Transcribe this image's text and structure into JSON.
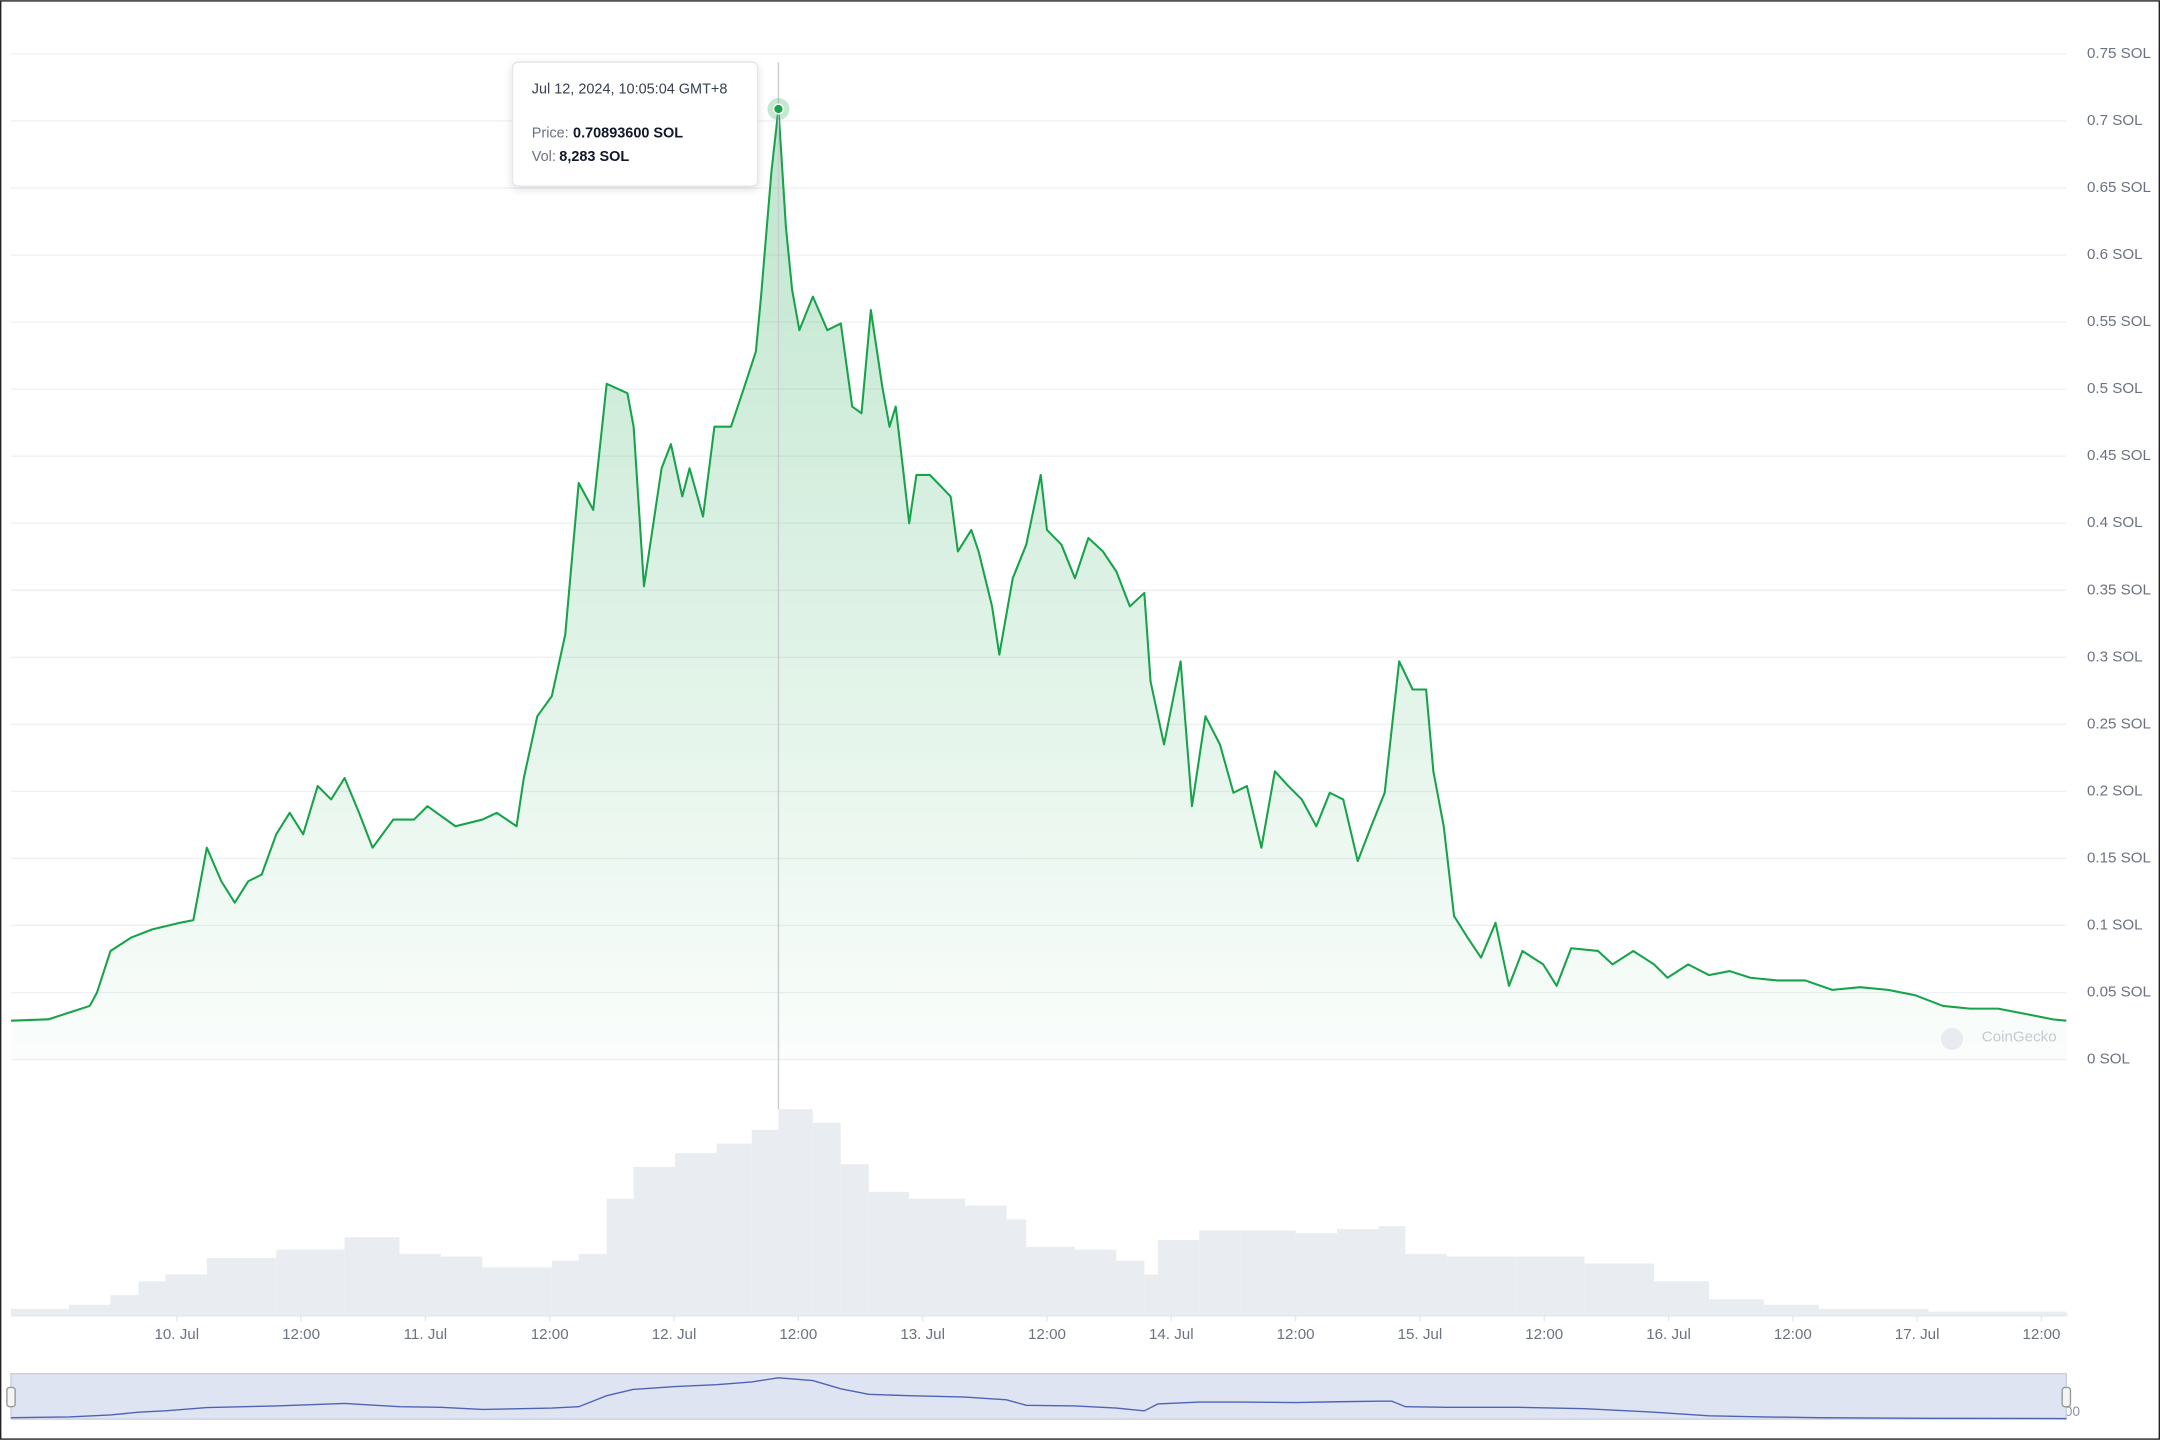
{
  "chart_data": [
    {
      "type": "line",
      "color": "#16a34a",
      "x": [
        -16.0,
        -12.4,
        -10.4,
        -8.4,
        -7.7,
        -6.4,
        -4.4,
        -2.4,
        0.3,
        1.6,
        2.9,
        4.3,
        5.6,
        6.9,
        8.2,
        9.6,
        10.9,
        12.2,
        13.6,
        14.9,
        16.2,
        17.6,
        18.9,
        20.9,
        22.9,
        24.2,
        26.9,
        29.5,
        30.9,
        32.8,
        33.5,
        34.8,
        36.2,
        37.5,
        38.8,
        40.2,
        41.5,
        43.5,
        44.1,
        45.1,
        46.8,
        47.7,
        48.8,
        49.5,
        50.8,
        51.9,
        53.5,
        54.8,
        55.9,
        56.4,
        57.4,
        58.08,
        58.8,
        59.4,
        60.1,
        61.4,
        62.8,
        64.1,
        65.2,
        66.1,
        67.0,
        68.1,
        68.8,
        69.4,
        70.1,
        70.7,
        71.4,
        72.7,
        74.7,
        75.4,
        76.7,
        77.4,
        78.7,
        79.4,
        80.7,
        82.0,
        83.4,
        84.0,
        85.4,
        86.7,
        88.0,
        89.4,
        90.7,
        92.0,
        93.4,
        94.0,
        95.3,
        96.9,
        98.0,
        99.3,
        100.7,
        102.0,
        103.3,
        104.7,
        106.0,
        107.3,
        108.6,
        110.0,
        111.3,
        112.6,
        114.0,
        115.3,
        116.6,
        118.0,
        119.3,
        120.6,
        121.3,
        122.3,
        123.3,
        124.6,
        125.9,
        127.3,
        128.6,
        129.9,
        131.9,
        133.2,
        134.6,
        137.2,
        138.6,
        140.6,
        142.6,
        143.9,
        145.9,
        147.9,
        149.9,
        151.9,
        154.5,
        157.2,
        159.8,
        162.5,
        165.2,
        167.8,
        170.5,
        173.1,
        175.8,
        178.5,
        181.1,
        182.4
      ],
      "values": [
        0.029,
        0.03,
        0.035,
        0.04,
        0.05,
        0.081,
        0.091,
        0.097,
        0.102,
        0.104,
        0.158,
        0.133,
        0.117,
        0.133,
        0.138,
        0.168,
        0.184,
        0.168,
        0.204,
        0.194,
        0.21,
        0.184,
        0.158,
        0.179,
        0.179,
        0.189,
        0.174,
        0.179,
        0.184,
        0.174,
        0.21,
        0.256,
        0.271,
        0.317,
        0.43,
        0.41,
        0.504,
        0.497,
        0.472,
        0.353,
        0.441,
        0.459,
        0.42,
        0.441,
        0.405,
        0.472,
        0.472,
        0.502,
        0.528,
        0.569,
        0.662,
        0.708936,
        0.621,
        0.574,
        0.544,
        0.569,
        0.544,
        0.549,
        0.487,
        0.482,
        0.559,
        0.502,
        0.472,
        0.487,
        0.441,
        0.4,
        0.436,
        0.436,
        0.42,
        0.379,
        0.395,
        0.379,
        0.338,
        0.302,
        0.359,
        0.384,
        0.436,
        0.395,
        0.384,
        0.359,
        0.389,
        0.379,
        0.364,
        0.338,
        0.348,
        0.282,
        0.235,
        0.297,
        0.189,
        0.256,
        0.235,
        0.199,
        0.204,
        0.158,
        0.215,
        0.204,
        0.194,
        0.174,
        0.199,
        0.194,
        0.148,
        0.174,
        0.199,
        0.297,
        0.276,
        0.276,
        0.215,
        0.174,
        0.107,
        0.091,
        0.076,
        0.102,
        0.055,
        0.081,
        0.071,
        0.055,
        0.083,
        0.081,
        0.071,
        0.081,
        0.071,
        0.061,
        0.071,
        0.063,
        0.066,
        0.061,
        0.059,
        0.059,
        0.052,
        0.054,
        0.052,
        0.048,
        0.04,
        0.038,
        0.038,
        0.034,
        0.03,
        0.029
      ],
      "xlim": [
        -16,
        182.4
      ],
      "ylim": [
        0,
        0.75
      ],
      "yticks": [
        {
          "value": 0,
          "label": "0 SOL"
        },
        {
          "value": 0.05,
          "label": "0.05 SOL"
        },
        {
          "value": 0.1,
          "label": "0.1 SOL"
        },
        {
          "value": 0.15,
          "label": "0.15 SOL"
        },
        {
          "value": 0.2,
          "label": "0.2 SOL"
        },
        {
          "value": 0.25,
          "label": "0.25 SOL"
        },
        {
          "value": 0.3,
          "label": "0.3 SOL"
        },
        {
          "value": 0.35,
          "label": "0.35 SOL"
        },
        {
          "value": 0.4,
          "label": "0.4 SOL"
        },
        {
          "value": 0.45,
          "label": "0.45 SOL"
        },
        {
          "value": 0.5,
          "label": "0.5 SOL"
        },
        {
          "value": 0.55,
          "label": "0.55 SOL"
        },
        {
          "value": 0.6,
          "label": "0.6 SOL"
        },
        {
          "value": 0.65,
          "label": "0.65 SOL"
        },
        {
          "value": 0.7,
          "label": "0.7 SOL"
        },
        {
          "value": 0.75,
          "label": "0.75 SOL"
        }
      ],
      "xticks": [
        {
          "value": 0,
          "label": "10. Jul"
        },
        {
          "value": 12,
          "label": "12:00"
        },
        {
          "value": 24,
          "label": "11. Jul"
        },
        {
          "value": 36,
          "label": "12:00"
        },
        {
          "value": 48,
          "label": "12. Jul"
        },
        {
          "value": 60,
          "label": "12:00"
        },
        {
          "value": 72,
          "label": "13. Jul"
        },
        {
          "value": 84,
          "label": "12:00"
        },
        {
          "value": 96,
          "label": "14. Jul"
        },
        {
          "value": 108,
          "label": "12:00"
        },
        {
          "value": 120,
          "label": "15. Jul"
        },
        {
          "value": 132,
          "label": "12:00"
        },
        {
          "value": 144,
          "label": "16. Jul"
        },
        {
          "value": 156,
          "label": "12:00"
        },
        {
          "value": 168,
          "label": "17. Jul"
        },
        {
          "value": 180,
          "label": "12:00"
        }
      ],
      "grid": true,
      "tooltip": {
        "date": "Jul 12, 2024, 10:05:04 GMT+8",
        "price_label": "Price:",
        "price": "0.70893600 SOL",
        "vol_label": "Vol:",
        "vol": "8,283 SOL"
      }
    },
    {
      "type": "bar",
      "color": "#e9ecf1",
      "x": [
        -16.0,
        -10.4,
        -6.4,
        -3.7,
        -1.1,
        2.9,
        9.6,
        16.2,
        21.5,
        25.5,
        29.5,
        36.2,
        38.8,
        41.5,
        44.1,
        48.1,
        52.1,
        55.5,
        58.08,
        61.4,
        64.1,
        66.8,
        70.7,
        76.1,
        80.1,
        82.0,
        86.7,
        90.7,
        93.4,
        94.7,
        98.7,
        102.7,
        108.0,
        112.0,
        116.0,
        117.3,
        118.6,
        122.6,
        129.3,
        135.9,
        142.6,
        147.9,
        153.2,
        158.5,
        169.1,
        182.4
      ],
      "values": [
        276,
        442,
        828,
        1381,
        1657,
        2319,
        2651,
        3148,
        2485,
        2374,
        1933,
        2209,
        2485,
        4694,
        5964,
        6516,
        6903,
        7455,
        8283,
        7731,
        6074,
        4970,
        4694,
        4418,
        3865,
        2761,
        2651,
        2209,
        1657,
        3037,
        3424,
        3424,
        3313,
        3479,
        3589,
        3589,
        2485,
        2374,
        2374,
        2098,
        1381,
        663,
        442,
        276,
        166,
        110
      ],
      "xlim": [
        -16,
        182.4
      ]
    }
  ],
  "watermark": "CoinGecko"
}
